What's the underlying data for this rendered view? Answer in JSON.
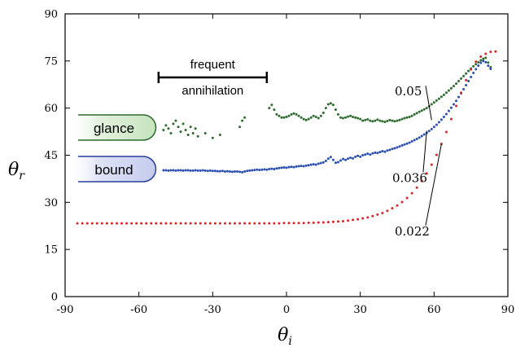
{
  "chart_data": {
    "type": "scatter",
    "xlabel": "θ",
    "xlabel_sub": "i",
    "ylabel": "θ",
    "ylabel_sub": "r",
    "xlim": [
      -90,
      90
    ],
    "ylim": [
      0,
      90
    ],
    "xticks": [
      -90,
      -60,
      -30,
      0,
      30,
      60,
      90
    ],
    "yticks": [
      0,
      15,
      30,
      45,
      60,
      75,
      90
    ],
    "grid": false,
    "legend": "none",
    "annotations": {
      "bracket_label_1": "frequent",
      "bracket_label_2": "annihilation",
      "bracket_x_range": [
        -52,
        -8
      ],
      "glance_label": "glance",
      "bound_label": "bound"
    },
    "series": [
      {
        "label": "0.05",
        "color": "#2e6b2e",
        "x": [
          -50,
          -49,
          -48,
          -47,
          -46,
          -45,
          -44,
          -43,
          -42,
          -41,
          -40,
          -39,
          -38,
          -37,
          -36,
          -33,
          -30,
          -27,
          -19,
          -18,
          -17,
          -7,
          -6,
          -5,
          -4,
          -3,
          -2,
          -1,
          0,
          1,
          2,
          3,
          4,
          5,
          6,
          7,
          8,
          9,
          10,
          11,
          12,
          13,
          14,
          15,
          16,
          17,
          18,
          19,
          20,
          21,
          22,
          23,
          24,
          25,
          26,
          27,
          28,
          29,
          30,
          31,
          32,
          33,
          34,
          35,
          36,
          37,
          38,
          39,
          40,
          41,
          42,
          43,
          44,
          45,
          46,
          47,
          48,
          49,
          50,
          51,
          52,
          53,
          54,
          55,
          56,
          57,
          58,
          59,
          60,
          61,
          62,
          63,
          64,
          65,
          66,
          67,
          68,
          69,
          70,
          71,
          72,
          73,
          74,
          75,
          76,
          77,
          78,
          79,
          80,
          81,
          82,
          83
        ],
        "y": [
          53,
          54.5,
          53.5,
          52,
          55,
          56,
          54,
          52.5,
          55,
          53,
          51.5,
          54,
          52,
          53.5,
          51,
          52,
          50.5,
          51.5,
          54,
          56,
          57,
          60,
          61,
          59.5,
          58,
          57.5,
          57,
          57,
          57.2,
          57.5,
          58,
          58.3,
          58,
          57.5,
          57,
          56.5,
          56.2,
          56.5,
          57,
          57.5,
          57.2,
          56.8,
          57.5,
          58.5,
          60,
          61.2,
          61.5,
          61,
          59.5,
          58,
          57,
          56.8,
          57,
          57.3,
          57.5,
          57.2,
          57,
          56.8,
          56.5,
          56,
          56.2,
          56.4,
          56,
          55.8,
          56,
          56.3,
          56,
          55.8,
          55.6,
          55.9,
          56.2,
          56,
          55.8,
          56,
          56.2,
          56.5,
          56.8,
          57,
          57.2,
          57.5,
          58,
          58.4,
          58.8,
          59.2,
          59.6,
          60,
          60.6,
          61.2,
          61.8,
          62.4,
          63,
          63.6,
          64.2,
          64.9,
          65.6,
          66.3,
          67,
          67.8,
          68.6,
          69.4,
          70.2,
          71,
          71.8,
          72.6,
          73.3,
          74,
          74.6,
          75.2,
          75.7,
          76,
          74.5,
          73
        ]
      },
      {
        "label": "0.036",
        "color": "#2a4fb0",
        "x": [
          -50,
          -49,
          -48,
          -47,
          -46,
          -45,
          -44,
          -43,
          -42,
          -41,
          -40,
          -39,
          -38,
          -37,
          -36,
          -35,
          -34,
          -33,
          -32,
          -31,
          -30,
          -29,
          -28,
          -27,
          -26,
          -25,
          -24,
          -23,
          -22,
          -21,
          -20,
          -19,
          -18,
          -17,
          -16,
          -15,
          -14,
          -13,
          -12,
          -11,
          -10,
          -9,
          -8,
          -7,
          -6,
          -5,
          -4,
          -3,
          -2,
          -1,
          0,
          1,
          2,
          3,
          4,
          5,
          6,
          7,
          8,
          9,
          10,
          11,
          12,
          13,
          14,
          15,
          16,
          17,
          18,
          19,
          20,
          21,
          22,
          23,
          24,
          25,
          26,
          27,
          28,
          29,
          30,
          31,
          32,
          33,
          34,
          35,
          36,
          37,
          38,
          39,
          40,
          41,
          42,
          43,
          44,
          45,
          46,
          47,
          48,
          49,
          50,
          51,
          52,
          53,
          54,
          55,
          56,
          57,
          58,
          59,
          60,
          61,
          62,
          63,
          64,
          65,
          66,
          67,
          68,
          69,
          70,
          71,
          72,
          73,
          74,
          75,
          76,
          77,
          78,
          79,
          80,
          81,
          82,
          83
        ],
        "y": [
          40.2,
          40.2,
          40.1,
          40.2,
          40.2,
          40.1,
          40.2,
          40.2,
          40.1,
          40.2,
          40.2,
          40.1,
          40.1,
          40.2,
          40.1,
          40.1,
          40.2,
          40.1,
          40.0,
          40.1,
          40.0,
          40.0,
          39.9,
          39.9,
          40.0,
          39.8,
          39.9,
          39.8,
          39.7,
          39.8,
          39.8,
          39.7,
          39.6,
          39.8,
          40.0,
          40.1,
          40.2,
          40.3,
          40.4,
          40.3,
          40.4,
          40.5,
          40.4,
          40.6,
          40.7,
          40.6,
          40.8,
          40.9,
          41.0,
          41.1,
          41.0,
          41.2,
          41.3,
          41.2,
          41.4,
          41.5,
          41.6,
          41.5,
          41.7,
          41.8,
          42.0,
          42.1,
          42.0,
          42.3,
          42.5,
          42.7,
          43.2,
          43.9,
          44.4,
          43.5,
          42.6,
          42.8,
          43.3,
          43.8,
          43.5,
          43.9,
          44.2,
          44.0,
          44.5,
          44.8,
          44.5,
          45.0,
          45.2,
          45.5,
          45.2,
          45.6,
          45.8,
          45.7,
          46.0,
          46.3,
          46.1,
          46.5,
          46.7,
          47.0,
          47.2,
          47.5,
          47.8,
          48.1,
          48.4,
          48.7,
          49.0,
          49.4,
          49.8,
          50.2,
          50.6,
          51.1,
          51.6,
          52.1,
          52.7,
          53.3,
          54.0,
          54.7,
          55.5,
          56.3,
          57.2,
          58.1,
          59.1,
          60.1,
          61.2,
          62.3,
          63.5,
          64.7,
          66.0,
          67.3,
          68.6,
          69.9,
          71.2,
          72.4,
          73.5,
          74.4,
          75.0,
          74.6,
          73.5,
          72.5
        ]
      },
      {
        "label": "0.022",
        "color": "#d62a2a",
        "x": [
          -85,
          -83,
          -81,
          -79,
          -77,
          -75,
          -73,
          -71,
          -69,
          -67,
          -65,
          -63,
          -61,
          -59,
          -57,
          -55,
          -53,
          -51,
          -49,
          -47,
          -45,
          -43,
          -41,
          -39,
          -37,
          -35,
          -33,
          -31,
          -29,
          -27,
          -25,
          -23,
          -21,
          -19,
          -17,
          -15,
          -13,
          -11,
          -9,
          -7,
          -5,
          -3,
          -1,
          1,
          3,
          5,
          7,
          9,
          11,
          13,
          15,
          17,
          19,
          21,
          23,
          25,
          27,
          29,
          31,
          33,
          35,
          37,
          39,
          41,
          43,
          45,
          47,
          49,
          51,
          53,
          55,
          57,
          59,
          61,
          63,
          65,
          67,
          69,
          71,
          73,
          75,
          77,
          79,
          81,
          83,
          85
        ],
        "y": [
          23.3,
          23.3,
          23.3,
          23.3,
          23.3,
          23.3,
          23.3,
          23.3,
          23.3,
          23.3,
          23.3,
          23.3,
          23.3,
          23.3,
          23.3,
          23.3,
          23.3,
          23.3,
          23.3,
          23.3,
          23.3,
          23.3,
          23.3,
          23.3,
          23.3,
          23.3,
          23.3,
          23.3,
          23.3,
          23.3,
          23.3,
          23.3,
          23.3,
          23.3,
          23.3,
          23.3,
          23.3,
          23.3,
          23.3,
          23.3,
          23.3,
          23.3,
          23.4,
          23.4,
          23.4,
          23.4,
          23.4,
          23.5,
          23.5,
          23.6,
          23.6,
          23.7,
          23.8,
          23.9,
          24.0,
          24.2,
          24.4,
          24.6,
          24.9,
          25.2,
          25.6,
          26.1,
          26.6,
          27.3,
          28.1,
          29.0,
          30.1,
          31.4,
          32.9,
          34.7,
          36.8,
          39.2,
          42.0,
          45.1,
          48.6,
          52.4,
          56.5,
          60.7,
          64.9,
          68.9,
          72.3,
          74.8,
          76.4,
          77.3,
          77.9,
          78.0
        ]
      }
    ]
  }
}
